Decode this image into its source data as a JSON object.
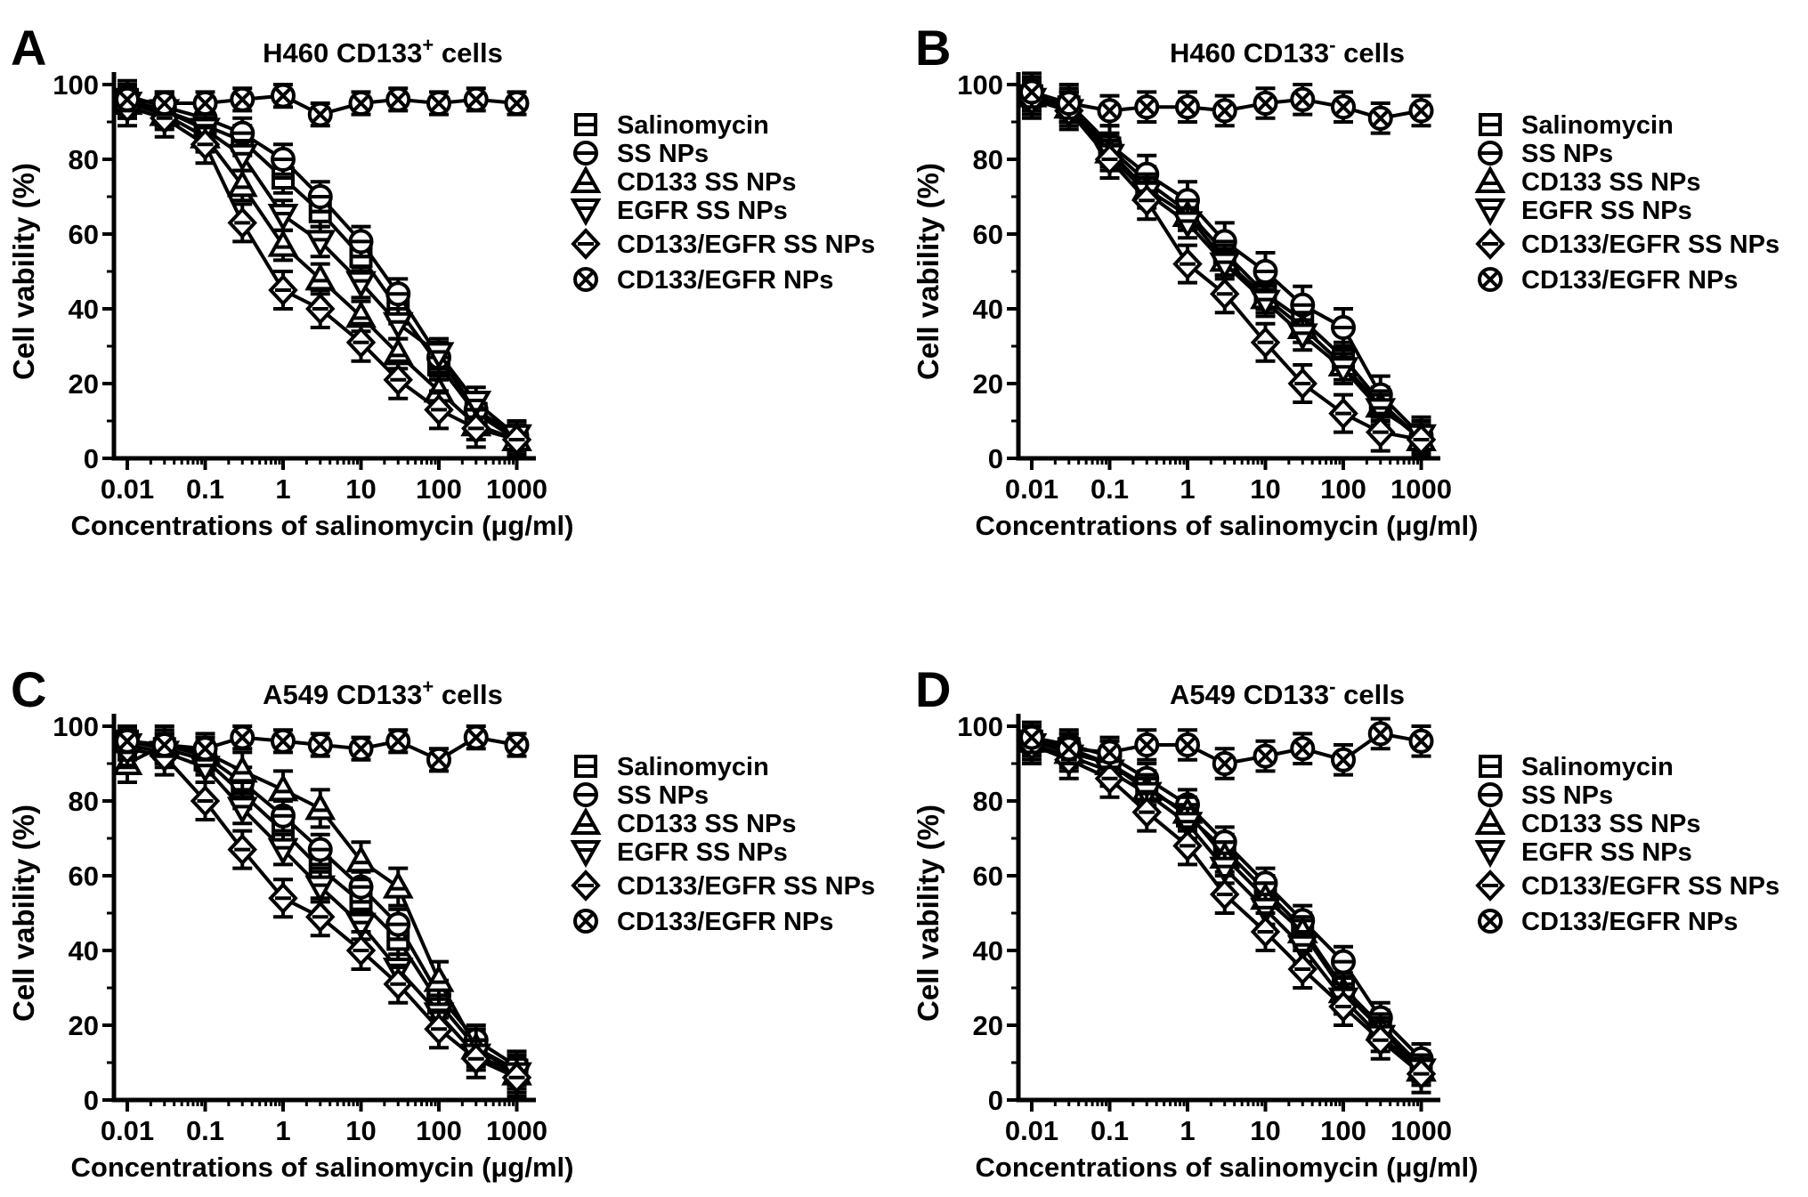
{
  "figure": {
    "background": "#ffffff",
    "ink_color": "#000000",
    "y_axis_label": "Cell vability (%)",
    "x_axis_label": "Concentrations of salinomycin (μg/ml)",
    "x_tick_labels": [
      "0.01",
      "0.1",
      "1",
      "10",
      "100",
      "1000"
    ],
    "y_tick_labels": [
      "0",
      "20",
      "40",
      "60",
      "80",
      "100"
    ],
    "legend_items": [
      {
        "label": "Salinomycin",
        "marker": "square-hline-icon"
      },
      {
        "label": "SS NPs",
        "marker": "circle-hline-icon"
      },
      {
        "label": "CD133 SS NPs",
        "marker": "triangle-up-hline-icon"
      },
      {
        "label": "EGFR SS NPs",
        "marker": "triangle-down-hline-icon"
      },
      {
        "label": "CD133/EGFR SS NPs",
        "marker": "diamond-hline-icon"
      },
      {
        "label": "CD133/EGFR NPs",
        "marker": "circle-x-icon"
      }
    ]
  },
  "chart_data": [
    {
      "panel_label": "A",
      "type": "line",
      "title": {
        "prefix": "H460 CD133",
        "sup": "+",
        "suffix": " cells"
      },
      "xlabel": "Concentrations of salinomycin (μg/ml)",
      "ylabel": "Cell vability (%)",
      "xscale": "log",
      "xlim": [
        0.01,
        1000
      ],
      "ylim": [
        0,
        100
      ],
      "grid": false,
      "legend_position": "right",
      "x": [
        0.01,
        0.03,
        0.1,
        0.3,
        1,
        3,
        10,
        30,
        100,
        300,
        1000
      ],
      "series": [
        {
          "name": "Salinomycin",
          "marker": "square-hline",
          "values": [
            96,
            93,
            89,
            85,
            75,
            66,
            54,
            40,
            25,
            12,
            5
          ],
          "err": 4
        },
        {
          "name": "SS NPs",
          "marker": "circle-hline",
          "values": [
            97,
            94,
            91,
            87,
            80,
            70,
            58,
            44,
            27,
            13,
            6
          ],
          "err": 4
        },
        {
          "name": "CD133 SS NPs",
          "marker": "triangle-up-hline",
          "values": [
            95,
            92,
            86,
            73,
            57,
            48,
            38,
            28,
            18,
            9,
            5
          ],
          "err": 4
        },
        {
          "name": "EGFR SS NPs",
          "marker": "triangle-down-hline",
          "values": [
            95,
            93,
            88,
            81,
            65,
            58,
            47,
            36,
            28,
            15,
            6
          ],
          "err": 4
        },
        {
          "name": "CD133/EGFR SS NPs",
          "marker": "diamond-hline",
          "values": [
            94,
            91,
            84,
            63,
            45,
            40,
            31,
            21,
            13,
            8,
            5
          ],
          "err": 5
        },
        {
          "name": "CD133/EGFR NPs",
          "marker": "circle-x",
          "values": [
            96,
            95,
            95,
            96,
            97,
            92,
            95,
            96,
            95,
            96,
            95
          ],
          "err": 3
        }
      ]
    },
    {
      "panel_label": "B",
      "type": "line",
      "title": {
        "prefix": "H460 CD133",
        "sup": "-",
        "suffix": " cells"
      },
      "xlabel": "Concentrations of salinomycin (μg/ml)",
      "ylabel": "Cell vability (%)",
      "xscale": "log",
      "xlim": [
        0.01,
        1000
      ],
      "ylim": [
        0,
        100
      ],
      "grid": false,
      "legend_position": "right",
      "x": [
        0.01,
        0.03,
        0.1,
        0.3,
        1,
        3,
        10,
        30,
        100,
        300,
        1000
      ],
      "series": [
        {
          "name": "Salinomycin",
          "marker": "square-hline",
          "values": [
            97,
            94,
            83,
            74,
            66,
            55,
            44,
            37,
            27,
            15,
            5
          ],
          "err": 4
        },
        {
          "name": "SS NPs",
          "marker": "circle-hline",
          "values": [
            98,
            95,
            84,
            76,
            69,
            58,
            50,
            41,
            35,
            17,
            6
          ],
          "err": 5
        },
        {
          "name": "CD133 SS NPs",
          "marker": "triangle-up-hline",
          "values": [
            97,
            94,
            82,
            72,
            65,
            53,
            43,
            35,
            25,
            14,
            5
          ],
          "err": 4
        },
        {
          "name": "EGFR SS NPs",
          "marker": "triangle-down-hline",
          "values": [
            96,
            93,
            81,
            71,
            63,
            52,
            42,
            33,
            24,
            13,
            6
          ],
          "err": 4
        },
        {
          "name": "CD133/EGFR SS NPs",
          "marker": "diamond-hline",
          "values": [
            96,
            93,
            80,
            69,
            52,
            44,
            31,
            20,
            12,
            7,
            5
          ],
          "err": 5
        },
        {
          "name": "CD133/EGFR NPs",
          "marker": "circle-x",
          "values": [
            98,
            95,
            93,
            94,
            94,
            93,
            95,
            96,
            94,
            91,
            93
          ],
          "err": 4
        }
      ]
    },
    {
      "panel_label": "C",
      "type": "line",
      "title": {
        "prefix": "A549 CD133",
        "sup": "+",
        "suffix": " cells"
      },
      "xlabel": "Concentrations of salinomycin (μg/ml)",
      "ylabel": "Cell vability (%)",
      "xscale": "log",
      "xlim": [
        0.01,
        1000
      ],
      "ylim": [
        0,
        100
      ],
      "grid": false,
      "legend_position": "right",
      "x": [
        0.01,
        0.03,
        0.1,
        0.3,
        1,
        3,
        10,
        30,
        100,
        300,
        1000
      ],
      "series": [
        {
          "name": "Salinomycin",
          "marker": "square-hline",
          "values": [
            96,
            94,
            91,
            82,
            72,
            62,
            53,
            43,
            26,
            14,
            8
          ],
          "err": 4
        },
        {
          "name": "SS NPs",
          "marker": "circle-hline",
          "values": [
            96,
            95,
            92,
            85,
            76,
            67,
            57,
            47,
            28,
            16,
            9
          ],
          "err": 4
        },
        {
          "name": "CD133 SS NPs",
          "marker": "triangle-up-hline",
          "values": [
            90,
            95,
            93,
            88,
            83,
            78,
            64,
            57,
            32,
            14,
            7
          ],
          "err": 5
        },
        {
          "name": "EGFR SS NPs",
          "marker": "triangle-down-hline",
          "values": [
            95,
            93,
            89,
            78,
            67,
            57,
            47,
            35,
            23,
            12,
            7
          ],
          "err": 4
        },
        {
          "name": "CD133/EGFR SS NPs",
          "marker": "diamond-hline",
          "values": [
            94,
            92,
            80,
            67,
            54,
            49,
            40,
            31,
            19,
            11,
            6
          ],
          "err": 5
        },
        {
          "name": "CD133/EGFR NPs",
          "marker": "circle-x",
          "values": [
            96,
            95,
            94,
            97,
            96,
            95,
            94,
            96,
            91,
            97,
            95
          ],
          "err": 3
        }
      ]
    },
    {
      "panel_label": "D",
      "type": "line",
      "title": {
        "prefix": "A549 CD133",
        "sup": "-",
        "suffix": " cells"
      },
      "xlabel": "Concentrations of salinomycin (μg/ml)",
      "ylabel": "Cell vability (%)",
      "xscale": "log",
      "xlim": [
        0.01,
        1000
      ],
      "ylim": [
        0,
        100
      ],
      "grid": false,
      "legend_position": "right",
      "x": [
        0.01,
        0.03,
        0.1,
        0.3,
        1,
        3,
        10,
        30,
        100,
        300,
        1000
      ],
      "series": [
        {
          "name": "Salinomycin",
          "marker": "square-hline",
          "values": [
            96,
            94,
            90,
            84,
            76,
            67,
            56,
            46,
            30,
            20,
            9
          ],
          "err": 4
        },
        {
          "name": "SS NPs",
          "marker": "circle-hline",
          "values": [
            97,
            95,
            92,
            86,
            79,
            69,
            58,
            48,
            37,
            22,
            11
          ],
          "err": 4
        },
        {
          "name": "CD133 SS NPs",
          "marker": "triangle-up-hline",
          "values": [
            96,
            93,
            90,
            83,
            77,
            65,
            54,
            45,
            29,
            19,
            8
          ],
          "err": 4
        },
        {
          "name": "EGFR SS NPs",
          "marker": "triangle-down-hline",
          "values": [
            95,
            92,
            88,
            82,
            74,
            62,
            51,
            41,
            27,
            17,
            8
          ],
          "err": 4
        },
        {
          "name": "CD133/EGFR SS NPs",
          "marker": "diamond-hline",
          "values": [
            95,
            91,
            86,
            77,
            68,
            55,
            45,
            35,
            25,
            16,
            7
          ],
          "err": 5
        },
        {
          "name": "CD133/EGFR NPs",
          "marker": "circle-x",
          "values": [
            97,
            94,
            93,
            95,
            95,
            90,
            92,
            94,
            91,
            98,
            96
          ],
          "err": 4
        }
      ]
    }
  ]
}
